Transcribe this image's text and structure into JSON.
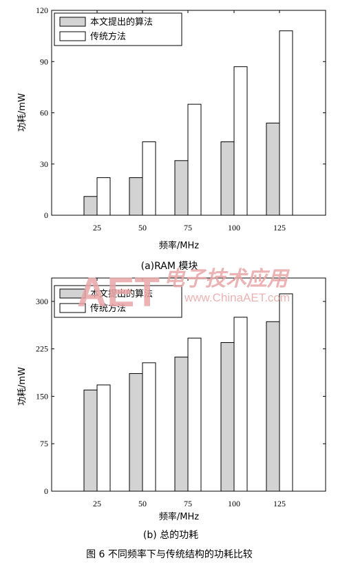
{
  "chart_data": [
    {
      "type": "bar",
      "categories": [
        "25",
        "50",
        "75",
        "100",
        "125"
      ],
      "series": [
        {
          "name": "本文提出的算法",
          "values": [
            11,
            22,
            32,
            43,
            54
          ],
          "color": "#d3d3d3"
        },
        {
          "name": "传统方法",
          "values": [
            22,
            43,
            65,
            87,
            108
          ],
          "color": "#ffffff"
        }
      ],
      "xlabel": "频率/MHz",
      "ylabel": "功耗/mW",
      "ylim": [
        0,
        120
      ],
      "yticks": [
        0,
        30,
        60,
        90,
        120
      ],
      "legend": "top-left",
      "grid": false,
      "caption": "(a)RAM 模块"
    },
    {
      "type": "bar",
      "categories": [
        "25",
        "50",
        "75",
        "100",
        "125"
      ],
      "series": [
        {
          "name": "本文提出的算法",
          "values": [
            160,
            186,
            212,
            235,
            268
          ],
          "color": "#d3d3d3"
        },
        {
          "name": "传统方法",
          "values": [
            168,
            203,
            242,
            275,
            312
          ],
          "color": "#ffffff"
        }
      ],
      "xlabel": "频率/MHz",
      "ylabel": "功耗/mW",
      "ylim": [
        0,
        337
      ],
      "yticks": [
        0,
        75,
        150,
        225,
        300
      ],
      "legend": "top-left",
      "grid": false,
      "caption": "(b) 总的功耗"
    }
  ],
  "figure_caption": "图 6   不同频率下与传统结构的功耗比较",
  "watermark": {
    "logo": "AET",
    "cn": "电子技术应用",
    "url": "www.ChinaAET.com",
    "color": "#e8a6a6"
  }
}
